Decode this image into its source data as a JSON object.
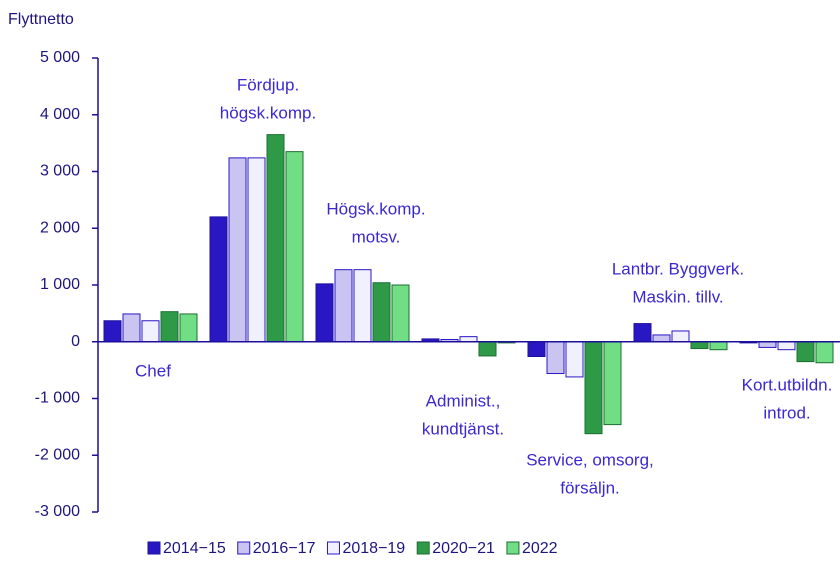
{
  "chart_data": {
    "type": "bar",
    "y_axis_label": "Flyttnetto",
    "categories": [
      [
        "Chef"
      ],
      [
        "Fördjup.",
        "högsk.komp."
      ],
      [
        "Högsk.komp.",
        "motsv."
      ],
      [
        "Administ.,",
        "kundtjänst."
      ],
      [
        "Service, omsorg,",
        "försäljn."
      ],
      [
        "Lantbr. Byggverk.",
        "Maskin. tillv."
      ],
      [
        "Kort.utbildn.",
        "introd."
      ]
    ],
    "series": [
      {
        "name": "2014−15",
        "color": "#2a17c4",
        "stroke": "#1c0f9a",
        "values": [
          370,
          2200,
          1020,
          50,
          -260,
          320,
          -20
        ]
      },
      {
        "name": "2016−17",
        "color": "#c9c5f0",
        "stroke": "#2a17c4",
        "values": [
          490,
          3240,
          1270,
          40,
          -560,
          120,
          -100
        ]
      },
      {
        "name": "2018−19",
        "color": "#f1f0ff",
        "stroke": "#2a17c4",
        "values": [
          370,
          3240,
          1270,
          90,
          -620,
          190,
          -140
        ]
      },
      {
        "name": "2020−21",
        "color": "#2e9a48",
        "stroke": "#1d6e32",
        "values": [
          530,
          3650,
          1040,
          -250,
          -1620,
          -120,
          -350
        ]
      },
      {
        "name": "2022",
        "color": "#71dd84",
        "stroke": "#1d6e32",
        "values": [
          490,
          3350,
          1000,
          -20,
          -1460,
          -140,
          -370
        ]
      }
    ],
    "ylim": [
      -3000,
      5000
    ],
    "yticks": [
      {
        "value": 5000,
        "label": "5 000"
      },
      {
        "value": 4000,
        "label": "4 000"
      },
      {
        "value": 3000,
        "label": "3 000"
      },
      {
        "value": 2000,
        "label": "2 000"
      },
      {
        "value": 1000,
        "label": "1 000"
      },
      0,
      {
        "value": -1000,
        "label": "-1 000"
      },
      {
        "value": -2000,
        "label": "-2 000"
      },
      {
        "value": -3000,
        "label": "-3 000"
      }
    ]
  }
}
